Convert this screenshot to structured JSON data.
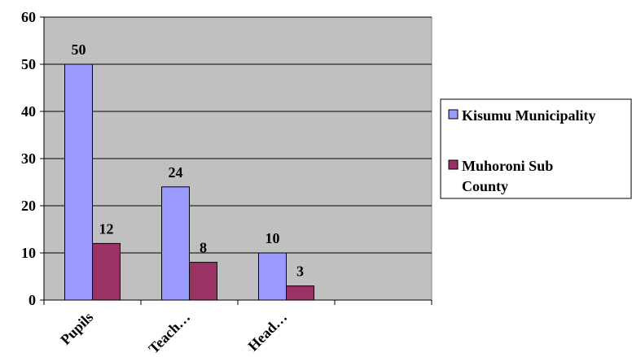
{
  "chart_data": {
    "type": "bar",
    "categories": [
      "Pupils",
      "Teach…",
      "Head…"
    ],
    "series": [
      {
        "name": "Kisumu Municipality",
        "values": [
          50,
          24,
          10
        ],
        "color": "#9999ff"
      },
      {
        "name": "Muhoroni Sub County",
        "values": [
          12,
          8,
          3
        ],
        "color": "#993366"
      }
    ],
    "y_ticks": [
      "0",
      "10",
      "20",
      "30",
      "40",
      "50",
      "60"
    ],
    "ylim": [
      0,
      60
    ],
    "grid": true,
    "legend_position": "right",
    "plot_background": "#c0c0c0",
    "legend_lines": [
      [
        "Kisumu Municipality"
      ],
      [
        "Muhoroni Sub",
        "County"
      ]
    ]
  }
}
